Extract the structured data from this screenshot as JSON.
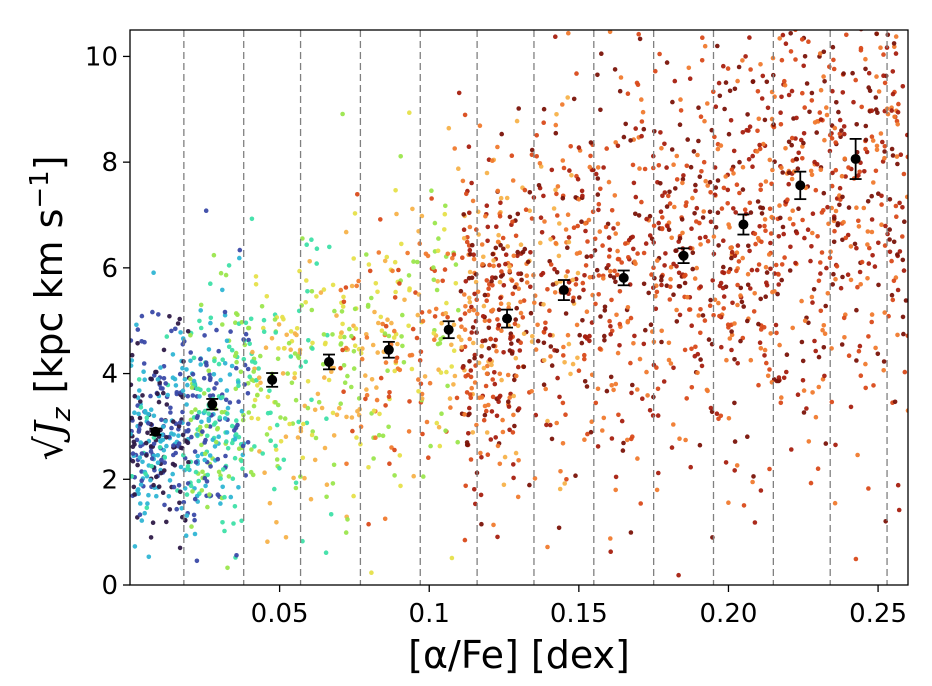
{
  "chart_data": {
    "type": "scatter",
    "title": "",
    "xlabel": "[α/Fe] [dex]",
    "ylabel_root": "√",
    "ylabel_var": "J",
    "ylabel_sub": "z",
    "ylabel_unit": "[kpc km s",
    "ylabel_exp": "−1",
    "ylabel_close": "]",
    "xlim": [
      0.0,
      0.26
    ],
    "ylim": [
      0,
      10.5
    ],
    "xticks": [
      {
        "value": 0.05,
        "label": "0.05"
      },
      {
        "value": 0.1,
        "label": "0.1"
      },
      {
        "value": 0.15,
        "label": "0.15"
      },
      {
        "value": 0.2,
        "label": "0.20"
      },
      {
        "value": 0.25,
        "label": "0.25"
      }
    ],
    "yticks": [
      {
        "value": 0,
        "label": "0"
      },
      {
        "value": 2,
        "label": "2"
      },
      {
        "value": 4,
        "label": "4"
      },
      {
        "value": 6,
        "label": "6"
      },
      {
        "value": 8,
        "label": "8"
      },
      {
        "value": 10,
        "label": "10"
      }
    ],
    "bin_edges": [
      0.018,
      0.038,
      0.057,
      0.077,
      0.097,
      0.116,
      0.135,
      0.155,
      0.175,
      0.195,
      0.215,
      0.234,
      0.253
    ],
    "binned_means": {
      "x": [
        0.0085,
        0.0275,
        0.0475,
        0.0665,
        0.0865,
        0.1065,
        0.126,
        0.145,
        0.165,
        0.185,
        0.205,
        0.224,
        0.2425
      ],
      "y": [
        2.9,
        3.42,
        3.88,
        4.22,
        4.45,
        4.83,
        5.04,
        5.58,
        5.81,
        6.23,
        6.82,
        7.56,
        8.06
      ],
      "err": [
        0.06,
        0.1,
        0.13,
        0.14,
        0.15,
        0.16,
        0.17,
        0.19,
        0.14,
        0.14,
        0.19,
        0.26,
        0.38
      ],
      "color": "#000000"
    },
    "scatter_colors": [
      "#2e1a47",
      "#3b4aa8",
      "#2fb5d4",
      "#3ee0a8",
      "#9be64d",
      "#e6e04a",
      "#f7b24a",
      "#f07a2e",
      "#d94a1a",
      "#a61f0f",
      "#7a1308"
    ],
    "grid_line_color": "#808080",
    "grid_on": false,
    "legend": "none"
  }
}
